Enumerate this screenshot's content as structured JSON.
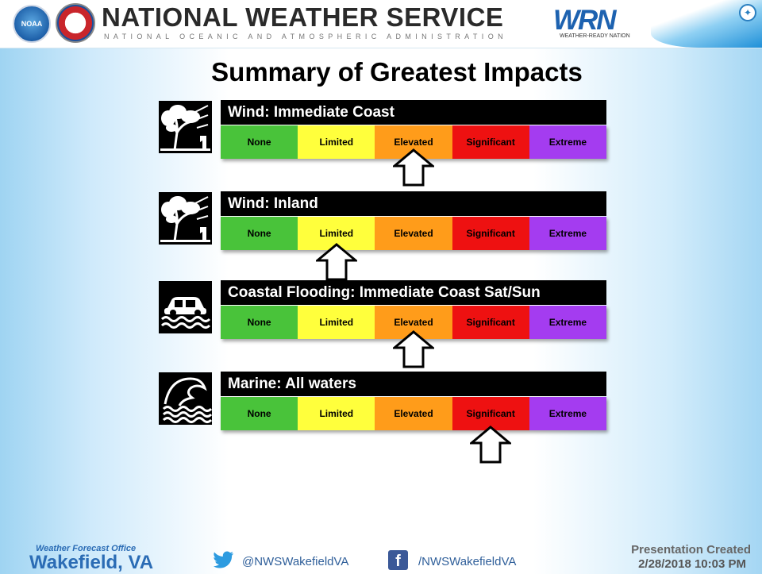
{
  "header": {
    "noaa_logo_text": "NOAA",
    "agency_title": "NATIONAL WEATHER SERVICE",
    "agency_subtitle": "NATIONAL OCEANIC AND ATMOSPHERIC ADMINISTRATION",
    "wrn_logo_text": "WRN",
    "wrn_tagline": "WEATHER-READY NATION"
  },
  "title": "Summary of Greatest Impacts",
  "scale_levels": [
    {
      "label": "None",
      "color": "#49c33a"
    },
    {
      "label": "Limited",
      "color": "#ffff3c"
    },
    {
      "label": "Elevated",
      "color": "#ff9c1a"
    },
    {
      "label": "Significant",
      "color": "#ee1111"
    },
    {
      "label": "Extreme",
      "color": "#a43cf0"
    }
  ],
  "hazards": [
    {
      "title": "Wind: Immediate Coast",
      "icon": "wind-tree-icon",
      "impact_level": "Elevated",
      "impact_index": 2
    },
    {
      "title": "Wind: Inland",
      "icon": "wind-tree-icon",
      "impact_level": "Limited",
      "impact_index": 1
    },
    {
      "title": "Coastal Flooding: Immediate Coast Sat/Sun",
      "icon": "flooded-car-icon",
      "impact_level": "Elevated",
      "impact_index": 2
    },
    {
      "title": "Marine: All waters",
      "icon": "ocean-wave-icon",
      "impact_level": "Significant",
      "impact_index": 3
    }
  ],
  "footer": {
    "office_label": "Weather Forecast Office",
    "office_city": "Wakefield, VA",
    "twitter": "@NWSWakefieldVA",
    "facebook": "/NWSWakefieldVA",
    "created_label": "Presentation Created",
    "created_date": "2/28/2018 10:03 PM"
  }
}
